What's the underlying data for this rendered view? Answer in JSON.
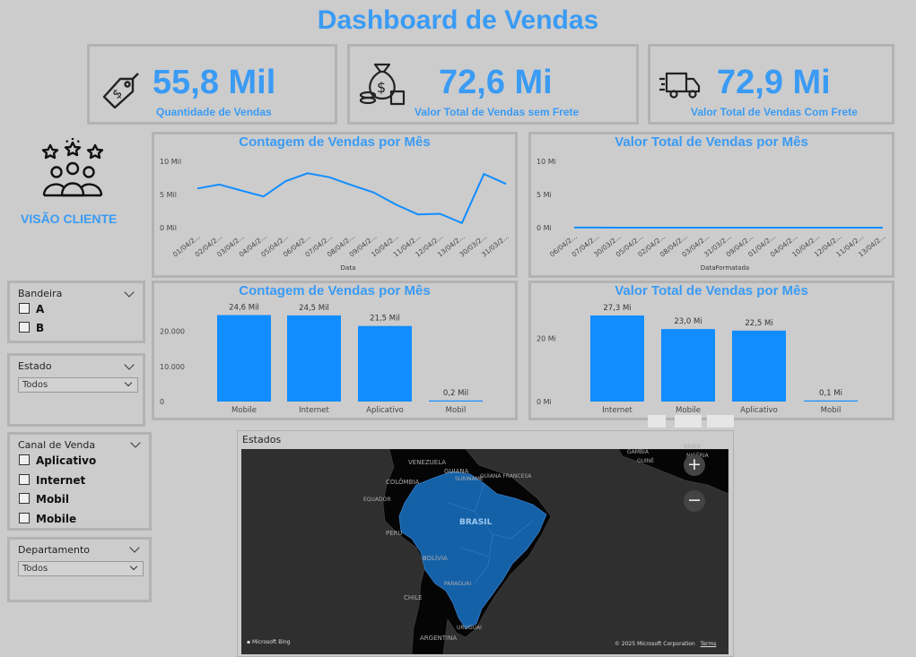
{
  "title": "Dashboard de Vendas",
  "colors": {
    "accent": "#3a9bf4",
    "bar": "#118dff",
    "line": "#118dff",
    "map_land": "#1461a8",
    "map_bg": "#2f2f2f"
  },
  "kpis": [
    {
      "value": "55,8 Mil",
      "label": "Quantidade de Vendas",
      "icon": "price-tag-icon"
    },
    {
      "value": "72,6 Mi",
      "label": "Valor Total de Vendas sem Frete",
      "icon": "money-bag-icon"
    },
    {
      "value": "72,9 Mi",
      "label": "Valor Total de Vendas Com Frete",
      "icon": "delivery-truck-icon"
    }
  ],
  "client_view": {
    "label": "VISÃO CLIENTE",
    "icon": "customer-rating-icon"
  },
  "filters": {
    "bandeira": {
      "title": "Bandeira",
      "options": [
        "A",
        "B"
      ]
    },
    "estado": {
      "title": "Estado",
      "selected": "Todos"
    },
    "canal": {
      "title": "Canal de Venda",
      "options": [
        "Aplicativo",
        "Internet",
        "Mobil",
        "Mobile"
      ]
    },
    "departamento": {
      "title": "Departamento",
      "selected": "Todos"
    }
  },
  "map": {
    "title": "Estados",
    "labels": [
      "VENEZUELA",
      "GUIANA",
      "SURINAME",
      "GUIANA FRANCESA",
      "COLÔMBIA",
      "EQUADOR",
      "BRASIL",
      "PERU",
      "BOLÍVIA",
      "PARAGUAI",
      "CHILE",
      "ARGENTINA",
      "URUGUAI",
      "GÂMBIA",
      "NÍGER",
      "GUINÉ",
      "NIGÉRIA"
    ],
    "attribution": "Microsoft Bing",
    "copyright": "© 2025 Microsoft Corporation",
    "terms": "Terms",
    "zoom_in": "+",
    "zoom_out": "−"
  },
  "chart_data": [
    {
      "type": "line",
      "title": "Contagem de Vendas por Mês",
      "xlabel": "Data",
      "ylabel": "",
      "ylim": [
        0,
        10000
      ],
      "yticks": [
        "0 Mil",
        "5 Mil",
        "10 Mil"
      ],
      "x": [
        "01/04/2...",
        "02/04/2...",
        "03/04/2...",
        "04/04/2...",
        "05/04/2...",
        "06/04/2...",
        "07/04/2...",
        "08/04/2...",
        "09/04/2...",
        "10/04/2...",
        "11/04/2...",
        "12/04/2...",
        "13/04/2...",
        "30/03/2...",
        "31/03/2..."
      ],
      "xticks_shown": [
        "01/04/2...",
        "02/04/2...",
        "03/04/2...",
        "04/04/2...",
        "05/04/2...",
        "06/04/2...",
        "07/04/2...",
        "08/04/2...",
        "09/04/2...",
        "10/04/2...",
        "11/04/2...",
        "12/04/2...",
        "13/04/2...",
        "30/03/2...",
        "31/03/2..."
      ],
      "series": [
        {
          "values": [
            5900,
            6500,
            5600,
            4700,
            7000,
            8200,
            7600,
            6400,
            5300,
            3500,
            2000,
            2100,
            700,
            8100,
            6600
          ]
        }
      ]
    },
    {
      "type": "line",
      "title": "Valor Total de Vendas por Mês",
      "xlabel": "DataFormatada",
      "ylabel": "",
      "ylim": [
        0,
        10000000
      ],
      "yticks": [
        "0 Mi",
        "5 Mi",
        "10 Mi"
      ],
      "x": [
        "06/04/2...",
        "07/04/2...",
        "30/03/2...",
        "05/04/2...",
        "02/04/2...",
        "08/04/2...",
        "03/04/2...",
        "31/03/2...",
        "09/04/2...",
        "01/04/2...",
        "04/04/2...",
        "10/04/2...",
        "12/04/2...",
        "11/04/2...",
        "13/04/2..."
      ],
      "series": [
        {
          "values": [
            8600,
            7200,
            6200,
            6000,
            5800,
            5700,
            5500,
            5300,
            5000,
            4900,
            4400,
            3500,
            1800,
            1800,
            600
          ]
        }
      ]
    },
    {
      "type": "bar",
      "title": "Contagem de Vendas por Mês",
      "categories": [
        "Mobile",
        "Internet",
        "Aplicativo",
        "Mobil"
      ],
      "values": [
        24600,
        24500,
        21500,
        200
      ],
      "data_labels": [
        "24,6 Mil",
        "24,5 Mil",
        "21,5 Mil",
        "0,2 Mil"
      ],
      "ylim": [
        0,
        26000
      ],
      "yticks": [
        "0",
        "10.000",
        "20.000"
      ]
    },
    {
      "type": "bar",
      "title": "Valor Total de Vendas por Mês",
      "categories": [
        "Internet",
        "Mobile",
        "Aplicativo",
        "Mobil"
      ],
      "values": [
        27.3,
        23.0,
        22.5,
        0.1
      ],
      "data_labels": [
        "27,3 Mi",
        "23,0 Mi",
        "22,5 Mi",
        "0,1 Mi"
      ],
      "ylim": [
        0,
        29
      ],
      "yticks": [
        "0 Mi",
        "20 Mi"
      ]
    }
  ]
}
